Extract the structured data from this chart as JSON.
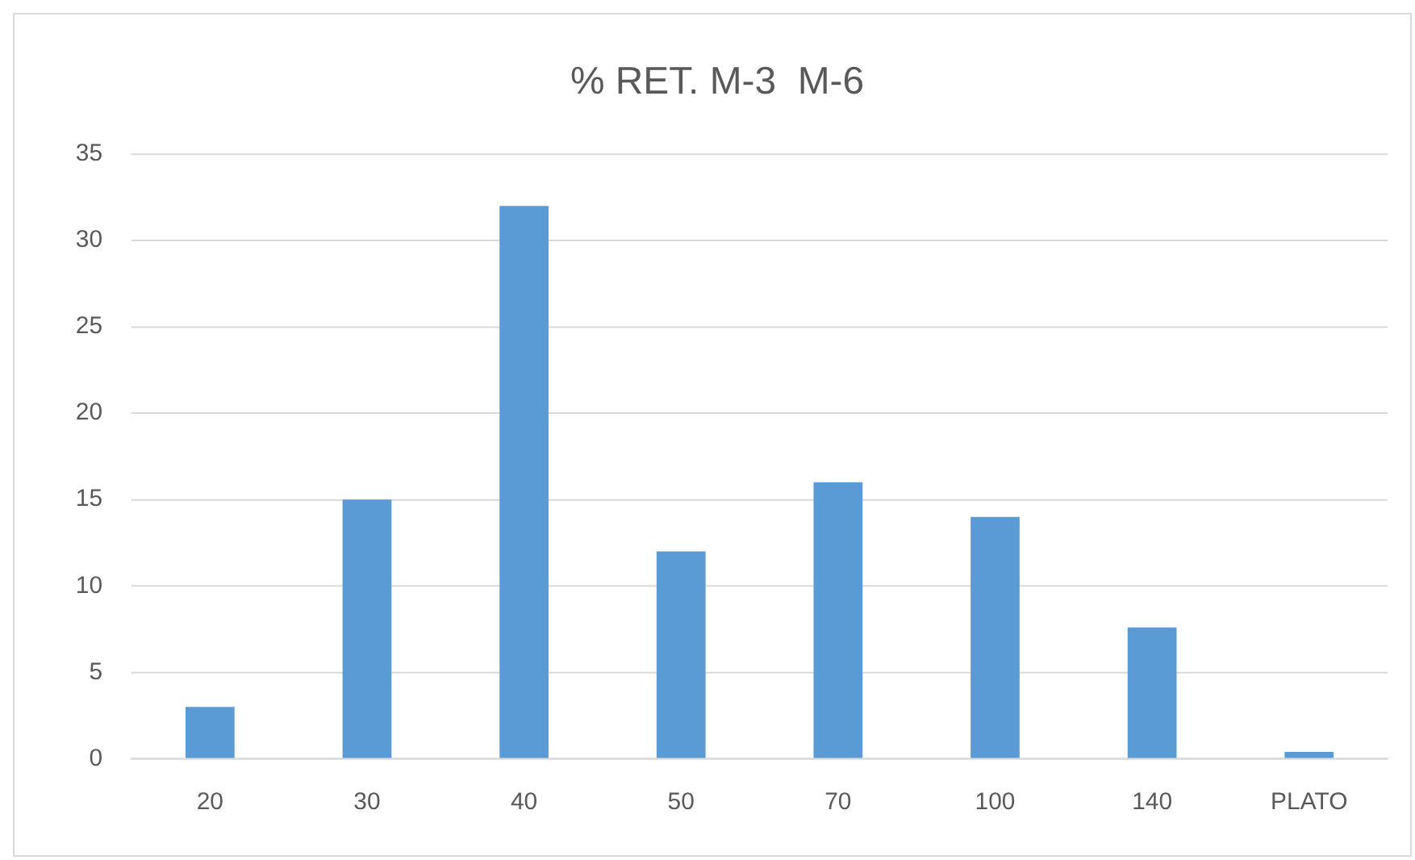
{
  "chart_data": {
    "type": "bar",
    "title": "% RET. M-3  M-6",
    "categories": [
      "20",
      "30",
      "40",
      "50",
      "70",
      "100",
      "140",
      "PLATO"
    ],
    "values": [
      3,
      15,
      32,
      12,
      16,
      14,
      7.6,
      0.4
    ],
    "color": "#5b9bd5",
    "ylim": [
      0,
      35
    ],
    "yticks": [
      0,
      5,
      10,
      15,
      20,
      25,
      30,
      35
    ],
    "grid": "y",
    "legend": false
  }
}
